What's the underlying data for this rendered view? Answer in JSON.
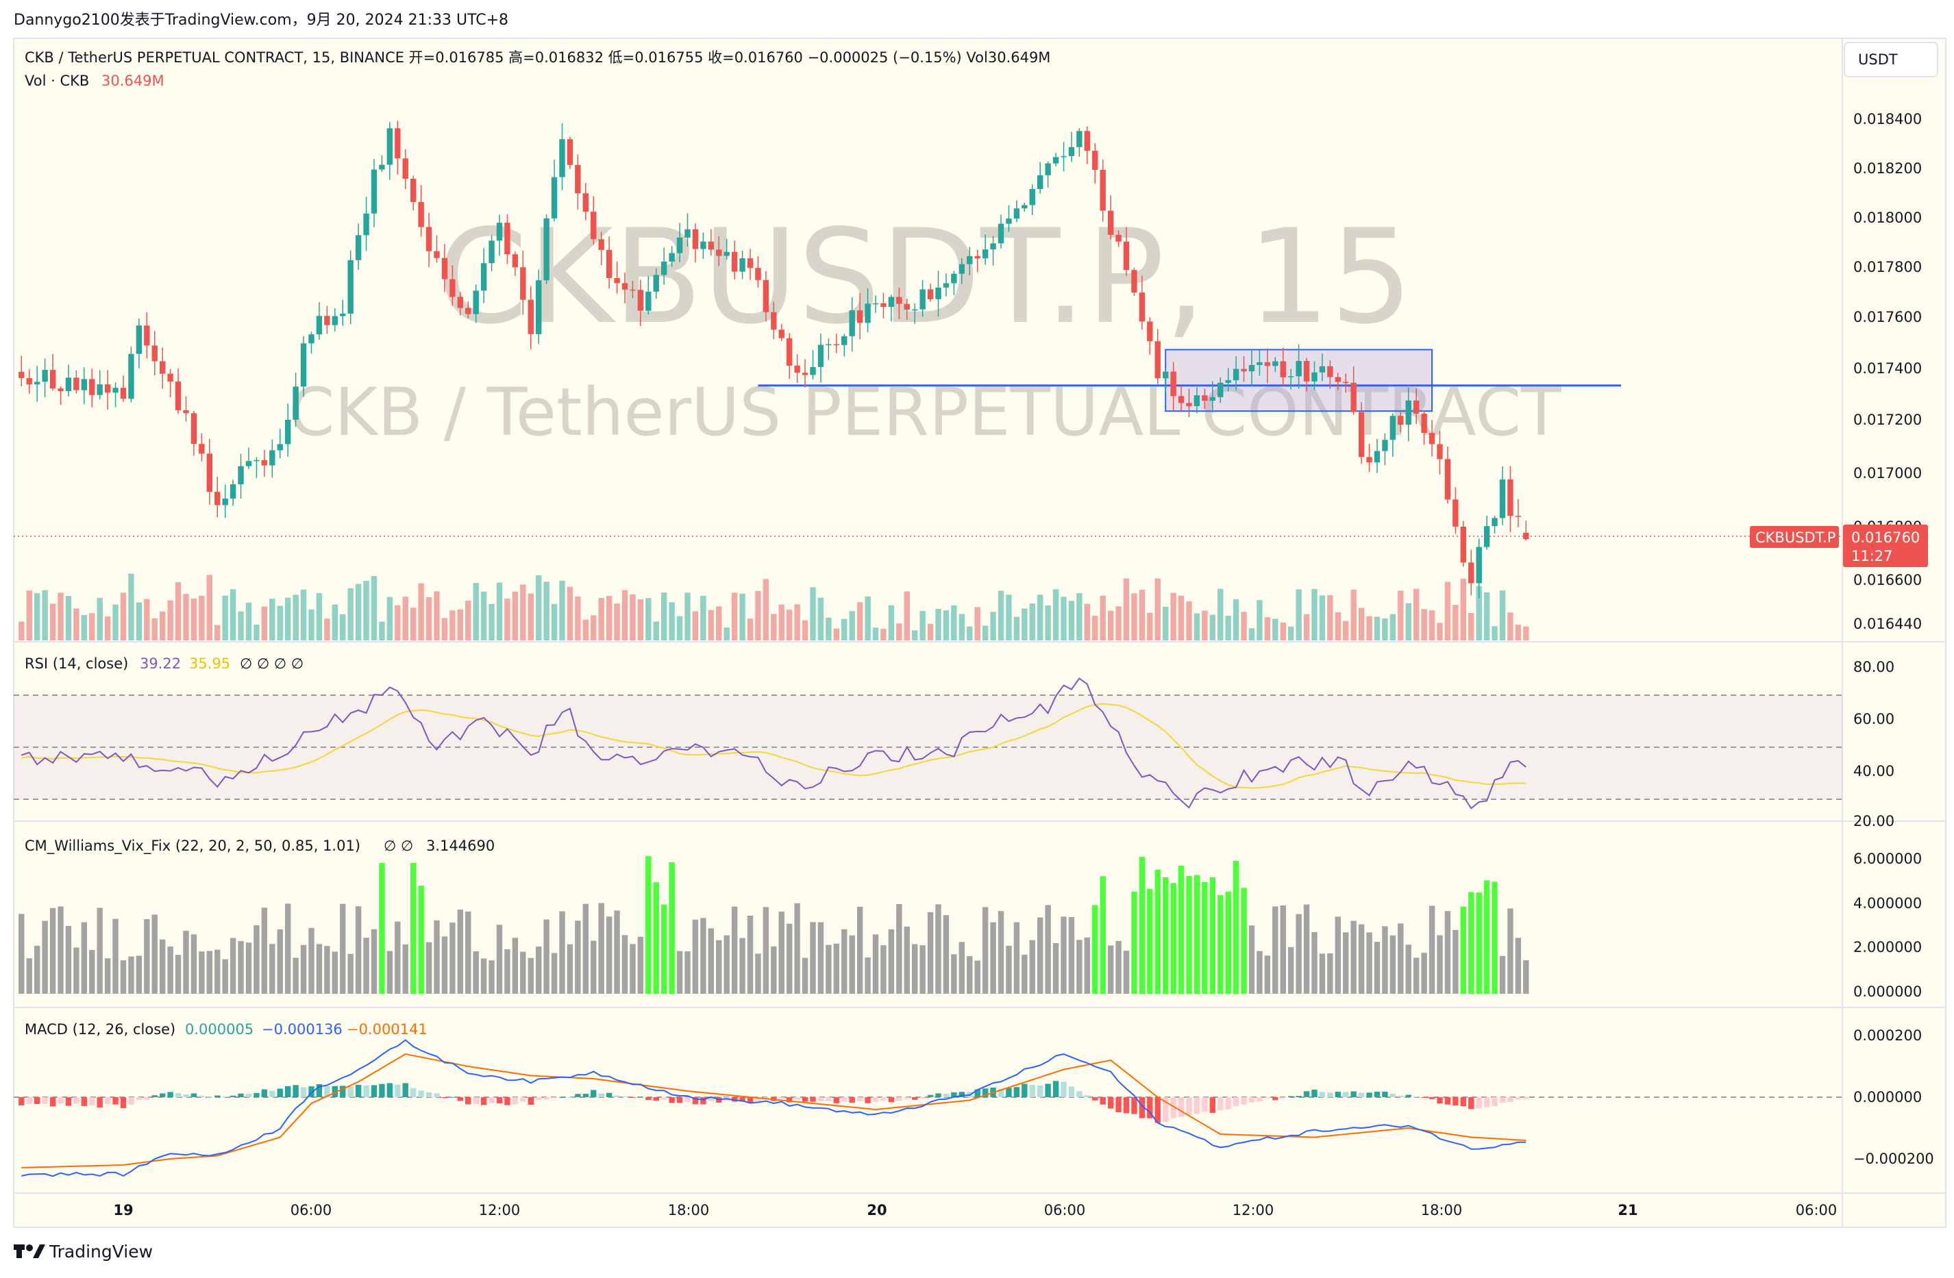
{
  "header": {
    "publish_line": "Dannygo2100发表于TradingView.com，9月 20, 2024 21:33 UTC+8"
  },
  "main": {
    "legend_line": "CKB / TetherUS PERPETUAL CONTRACT, 15, BINANCE  开=0.016785  高=0.016832  低=0.016755  收=0.016760  −0.000025 (−0.15%)  Vol30.649M",
    "vol_label": "Vol · CKB",
    "vol_value": "30.649M",
    "watermark_symbol": "CKBUSDT.P, 15",
    "watermark_name": "CKB / TetherUS PERPETUAL CONTRACT",
    "currency_button": "USDT",
    "price_ticks": [
      "0.018400",
      "0.018200",
      "0.018000",
      "0.017800",
      "0.017600",
      "0.017400",
      "0.017200",
      "0.017000",
      "0.016800",
      "0.016600",
      "0.016440"
    ],
    "last_symbol_tag": "CKBUSDT.P",
    "last_price_tag": "0.016760",
    "countdown_tag": "11:27"
  },
  "rsi_pane": {
    "label": "RSI (14, close)",
    "value1": "39.22",
    "value2": "35.95",
    "placeholders": "∅  ∅  ∅  ∅",
    "ticks": [
      "80.00",
      "60.00",
      "40.00",
      "20.00"
    ]
  },
  "vix_pane": {
    "label": "CM_Williams_Vix_Fix (22, 20, 2, 50, 0.85, 1.01)",
    "placeholders": "∅  ∅",
    "value": "3.144690",
    "ticks": [
      "6.000000",
      "4.000000",
      "2.000000",
      "0.000000"
    ]
  },
  "macd_pane": {
    "label": "MACD (12, 26, close)",
    "hist_value": "0.000005",
    "macd_value": "−0.000136",
    "signal_value": "−0.000141",
    "ticks": [
      "0.000200",
      "0.000000",
      "−0.000200"
    ]
  },
  "time_axis": {
    "labels": [
      "19",
      "06:00",
      "12:00",
      "18:00",
      "20",
      "06:00",
      "12:00",
      "18:00",
      "21",
      "06:00"
    ]
  },
  "footer": {
    "brand": "TradingView"
  },
  "colors": {
    "background": "#fffdf0",
    "up": "#26a69a",
    "down": "#ef5350",
    "vol_up": "#8fd1c4",
    "vol_down": "#f2a8a3",
    "rsi": "#7e57c2",
    "rsi_ma": "#f5d53a",
    "vix_normal": "#a3a3a3",
    "vix_alert": "#4cff3a",
    "macd": "#2962ff",
    "signal": "#ff6d00",
    "hline": "#2962ff",
    "box": "#b3a7e0"
  },
  "chart_data": {
    "type": "candlestick",
    "symbol": "CKBUSDT.P",
    "interval": "15",
    "exchange": "BINANCE",
    "ohlc": {
      "open": 0.016785,
      "high": 0.016832,
      "low": 0.016755,
      "close": 0.01676
    },
    "price_range": [
      0.0164,
      0.0185
    ],
    "horizontal_line": {
      "price": 0.01736
    },
    "rectangle": {
      "price_top": 0.0175,
      "price_bottom": 0.01726
    },
    "waypoints": [
      {
        "t": "19 00:00",
        "p": 0.01735
      },
      {
        "t": "19 00:30",
        "p": 0.01755
      },
      {
        "t": "19 02:00",
        "p": 0.01725
      },
      {
        "t": "19 03:00",
        "p": 0.0169
      },
      {
        "t": "19 03:45",
        "p": 0.017
      },
      {
        "t": "19 05:00",
        "p": 0.01715
      },
      {
        "t": "19 06:00",
        "p": 0.0176
      },
      {
        "t": "19 07:00",
        "p": 0.01768
      },
      {
        "t": "19 08:00",
        "p": 0.01818
      },
      {
        "t": "19 08:30",
        "p": 0.01834
      },
      {
        "t": "19 09:45",
        "p": 0.0179
      },
      {
        "t": "19 11:00",
        "p": 0.01765
      },
      {
        "t": "19 12:00",
        "p": 0.018
      },
      {
        "t": "19 13:00",
        "p": 0.0176
      },
      {
        "t": "19 14:00",
        "p": 0.01835
      },
      {
        "t": "19 15:00",
        "p": 0.0179
      },
      {
        "t": "19 16:30",
        "p": 0.01765
      },
      {
        "t": "19 18:00",
        "p": 0.01795
      },
      {
        "t": "19 20:00",
        "p": 0.0178
      },
      {
        "t": "19 21:30",
        "p": 0.0174
      },
      {
        "t": "20 00:00",
        "p": 0.0177
      },
      {
        "t": "20 02:00",
        "p": 0.0177
      },
      {
        "t": "20 04:00",
        "p": 0.01795
      },
      {
        "t": "20 05:30",
        "p": 0.0182
      },
      {
        "t": "20 06:30",
        "p": 0.01836
      },
      {
        "t": "20 08:00",
        "p": 0.0178
      },
      {
        "t": "20 09:00",
        "p": 0.0174
      },
      {
        "t": "20 10:00",
        "p": 0.01728
      },
      {
        "t": "20 12:00",
        "p": 0.01745
      },
      {
        "t": "20 15:00",
        "p": 0.01738
      },
      {
        "t": "20 15:30",
        "p": 0.01705
      },
      {
        "t": "20 17:00",
        "p": 0.01728
      },
      {
        "t": "20 18:00",
        "p": 0.01705
      },
      {
        "t": "20 19:00",
        "p": 0.0166
      },
      {
        "t": "20 20:00",
        "p": 0.01695
      },
      {
        "t": "20 20:45",
        "p": 0.01676
      }
    ],
    "rsi": {
      "range": [
        20,
        85
      ],
      "bands": [
        70,
        50,
        30
      ],
      "waypoints": [
        {
          "t": "19 00:00",
          "v": 48
        },
        {
          "t": "19 01:30",
          "v": 40
        },
        {
          "t": "19 03:00",
          "v": 38
        },
        {
          "t": "19 05:00",
          "v": 48
        },
        {
          "t": "19 06:00",
          "v": 58
        },
        {
          "t": "19 07:00",
          "v": 60
        },
        {
          "t": "19 08:30",
          "v": 72
        },
        {
          "t": "19 10:00",
          "v": 50
        },
        {
          "t": "19 11:30",
          "v": 62
        },
        {
          "t": "19 13:00",
          "v": 45
        },
        {
          "t": "19 14:00",
          "v": 66
        },
        {
          "t": "19 15:00",
          "v": 48
        },
        {
          "t": "19 16:30",
          "v": 42
        },
        {
          "t": "19 18:00",
          "v": 52
        },
        {
          "t": "19 20:00",
          "v": 46
        },
        {
          "t": "19 21:30",
          "v": 35
        },
        {
          "t": "20 00:00",
          "v": 48
        },
        {
          "t": "20 02:00",
          "v": 46
        },
        {
          "t": "20 04:00",
          "v": 60
        },
        {
          "t": "20 05:30",
          "v": 64
        },
        {
          "t": "20 06:30",
          "v": 77
        },
        {
          "t": "20 07:30",
          "v": 58
        },
        {
          "t": "20 08:30",
          "v": 42
        },
        {
          "t": "20 10:00",
          "v": 30
        },
        {
          "t": "20 11:00",
          "v": 36
        },
        {
          "t": "20 13:00",
          "v": 42
        },
        {
          "t": "20 15:00",
          "v": 46
        },
        {
          "t": "20 15:30",
          "v": 31
        },
        {
          "t": "20 17:00",
          "v": 43
        },
        {
          "t": "20 18:30",
          "v": 32
        },
        {
          "t": "20 19:10",
          "v": 26
        },
        {
          "t": "20 20:15",
          "v": 46
        },
        {
          "t": "20 20:45",
          "v": 39
        }
      ]
    },
    "vix_fix": {
      "range": [
        0,
        7
      ],
      "alert_segments": [
        "19 08:15",
        "19 09:15-19 09:30",
        "19 16:45-19 17:30",
        "20 07:00-20 07:15",
        "20 08:15-20 11:45",
        "20 18:45-20 19:45"
      ]
    },
    "macd": {
      "range": [
        -0.00027,
        0.00022
      ],
      "waypoints": [
        {
          "t": "19 00:00",
          "m": -0.00025,
          "s": -0.00022
        },
        {
          "t": "19 01:30",
          "m": -0.00018,
          "s": -0.0002
        },
        {
          "t": "19 03:00",
          "m": -0.00019,
          "s": -0.00019
        },
        {
          "t": "19 05:00",
          "m": -0.0001,
          "s": -0.00013
        },
        {
          "t": "19 06:00",
          "m": 2e-05,
          "s": -2e-05
        },
        {
          "t": "19 07:30",
          "m": 9e-05,
          "s": 5e-05
        },
        {
          "t": "19 09:00",
          "m": 0.00018,
          "s": 0.00014
        },
        {
          "t": "19 11:00",
          "m": 8e-05,
          "s": 0.0001
        },
        {
          "t": "19 13:00",
          "m": 5e-05,
          "s": 7e-05
        },
        {
          "t": "19 15:00",
          "m": 8e-05,
          "s": 6e-05
        },
        {
          "t": "19 18:00",
          "m": 0.0,
          "s": 2e-05
        },
        {
          "t": "19 21:00",
          "m": -2e-05,
          "s": -1e-05
        },
        {
          "t": "20 00:00",
          "m": -6e-05,
          "s": -4e-05
        },
        {
          "t": "20 03:00",
          "m": 1e-05,
          "s": -1e-05
        },
        {
          "t": "20 06:00",
          "m": 0.00014,
          "s": 9e-05
        },
        {
          "t": "20 07:30",
          "m": 8e-05,
          "s": 0.00012
        },
        {
          "t": "20 09:00",
          "m": -8e-05,
          "s": 0.0
        },
        {
          "t": "20 11:00",
          "m": -0.00016,
          "s": -0.00012
        },
        {
          "t": "20 14:00",
          "m": -0.00011,
          "s": -0.00013
        },
        {
          "t": "20 17:00",
          "m": -9e-05,
          "s": -0.0001
        },
        {
          "t": "20 19:00",
          "m": -0.00017,
          "s": -0.00013
        },
        {
          "t": "20 20:45",
          "m": -0.00014,
          "s": -0.00014
        }
      ]
    }
  }
}
